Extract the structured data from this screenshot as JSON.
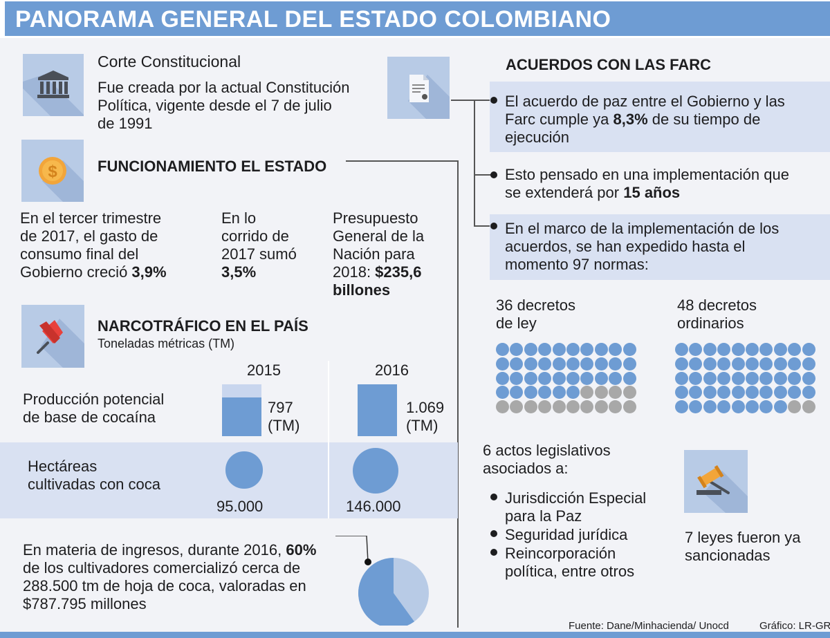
{
  "title": "PANORAMA GENERAL DEL ESTADO COLOMBIANO",
  "corte": {
    "heading": "Corte Constitucional",
    "line1": "Fue creada por la actual Constitución",
    "line2": "Política, vigente desde el 7 de julio",
    "line3": "de 1991"
  },
  "funcionamiento": {
    "heading": "FUNCIONAMIENTO EL ESTADO",
    "col1": {
      "l1": "En el tercer trimestre",
      "l2": "de 2017, el gasto de",
      "l3": "consumo final del",
      "l4": "Gobierno creció ",
      "value": "3,9%"
    },
    "col2": {
      "l1": "En lo",
      "l2": "corrido de",
      "l3": "2017 sumó",
      "value": "3,5%"
    },
    "col3": {
      "l1": "Presupuesto",
      "l2": "General de la",
      "l3": "Nación para",
      "l4": "2018: ",
      "value1": "$235,6",
      "value2": "billones"
    }
  },
  "narcotrafico": {
    "heading": "NARCOTRÁFICO EN EL PAÍS",
    "subheading": "Toneladas métricas (TM)",
    "year1": "2015",
    "year2": "2016",
    "row1_label_l1": "Producción potencial",
    "row1_label_l2": "de base de cocaína",
    "row2_label_l1": "Hectáreas",
    "row2_label_l2": "cultivadas con coca",
    "prod_2015_value": "797",
    "prod_2016_value": "1.069",
    "unit": "(TM)",
    "ha_2015": "95.000",
    "ha_2016": "146.000",
    "prod_2015_num": 797,
    "prod_2016_num": 1069,
    "ha_2015_num": 95000,
    "ha_2016_num": 146000
  },
  "ingresos": {
    "l1": "En materia de ingresos, durante 2016, ",
    "value": "60%",
    "l2": "de los cultivadores comercializó cerca de",
    "l3": "288.500 tm de hoja de coca, valoradas en",
    "l4": "$787.795 millones",
    "share": 0.6
  },
  "acuerdos": {
    "heading": "ACUERDOS CON LAS FARC",
    "b1": {
      "l1": "El acuerdo de paz entre el Gobierno y las",
      "l2a": "Farc cumple ya ",
      "value": "8,3%",
      "l2b": " de su tiempo de",
      "l3": "ejecución"
    },
    "b2": {
      "l1": "Esto pensado en una implementación que",
      "l2a": "se extenderá por ",
      "value": "15 años"
    },
    "b3": {
      "l1": "En el marco de la implementación de los",
      "l2": "acuerdos, se han expedido hasta el",
      "l3": "momento 97 normas:"
    },
    "decretos_ley": {
      "l1": "36 decretos",
      "l2": "de ley",
      "count": 36,
      "total": 50
    },
    "decretos_ord": {
      "l1": "48 decretos",
      "l2": "ordinarios",
      "count": 48,
      "total": 50
    },
    "actos": {
      "l1": "6 actos legislativos",
      "l2": "asociados a:"
    },
    "actos_items": [
      {
        "l1": "Jurisdicción Especial",
        "l2": "para la Paz"
      },
      {
        "l1": "Seguridad jurídica",
        "l2": ""
      },
      {
        "l1": "Reincorporación",
        "l2": "política, entre otros"
      }
    ],
    "leyes": {
      "l1": "7 leyes fueron ya",
      "l2": "sancionadas"
    }
  },
  "footer": {
    "source": "Fuente: Dane/Minhacienda/ Unocd",
    "credit": "Gráfico: LR-GR"
  },
  "colors": {
    "accent": "#6e9cd3",
    "band": "#d9e1f2",
    "icon_bg": "#b8cbe6",
    "dot_on": "#6e9cd3",
    "dot_off": "#a8a8a8",
    "pie_light": "#b8cbe6"
  },
  "icons": [
    "bank-icon",
    "document-icon",
    "dollar-coin-icon",
    "pushpin-icon",
    "gavel-icon"
  ]
}
